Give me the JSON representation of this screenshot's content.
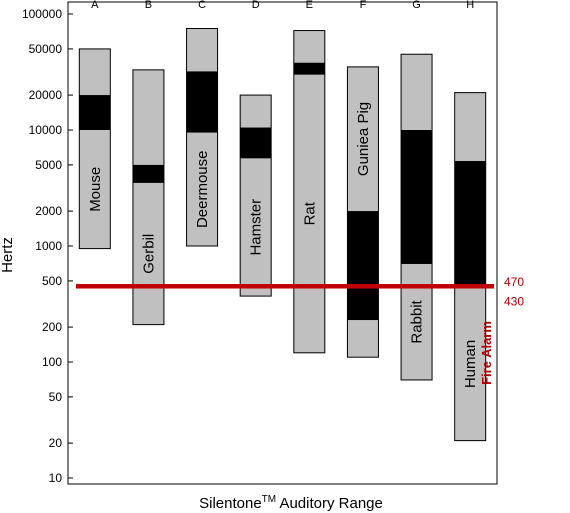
{
  "chart_data": {
    "type": "bar",
    "subtype": "floating-range",
    "xlabel_main": "Silentone",
    "xlabel_sup": "TM",
    "xlabel_rest": " Auditory Range",
    "ylabel": "Hertz",
    "yscale": "log",
    "ylim": [
      10,
      100000
    ],
    "yticks": [
      10,
      20,
      50,
      100,
      200,
      500,
      1000,
      2000,
      5000,
      10000,
      20000,
      50000,
      100000
    ],
    "ytick_labels": [
      "10",
      "20",
      "50",
      "100",
      "200",
      "500",
      "1000",
      "2000",
      "5000",
      "10000",
      "20000",
      "50000",
      "100000"
    ],
    "columns": [
      {
        "letter": "A",
        "label": "Mouse",
        "range": [
          950,
          50000
        ],
        "dark": [
          10000,
          20000
        ]
      },
      {
        "letter": "B",
        "label": "Gerbil",
        "range": [
          210,
          33000
        ],
        "dark": [
          3500,
          5000
        ]
      },
      {
        "letter": "C",
        "label": "Deermouse",
        "range": [
          1000,
          75000
        ],
        "dark": [
          9500,
          32000
        ]
      },
      {
        "letter": "D",
        "label": "Hamster",
        "range": [
          370,
          20000
        ],
        "dark": [
          5700,
          10500
        ]
      },
      {
        "letter": "E",
        "label": "Rat",
        "range": [
          120,
          72000
        ],
        "dark": [
          30000,
          38000
        ]
      },
      {
        "letter": "F",
        "label": "Guniea Pig",
        "range": [
          110,
          35000
        ],
        "dark": [
          230,
          2000
        ]
      },
      {
        "letter": "G",
        "label": "Rabbit",
        "range": [
          70,
          45000
        ],
        "dark": [
          700,
          10000
        ]
      },
      {
        "letter": "H",
        "label": "Human",
        "range": [
          21,
          21000
        ],
        "dark": [
          440,
          5400
        ]
      }
    ],
    "annotation": {
      "label": "Fire Alarm",
      "low": 430,
      "high": 470,
      "low_label": "430",
      "high_label": "470"
    },
    "colors": {
      "bar": "#c0c0c0",
      "dark": "#000000",
      "alarm": "#c00000",
      "alarm_text": "#b00000"
    }
  }
}
